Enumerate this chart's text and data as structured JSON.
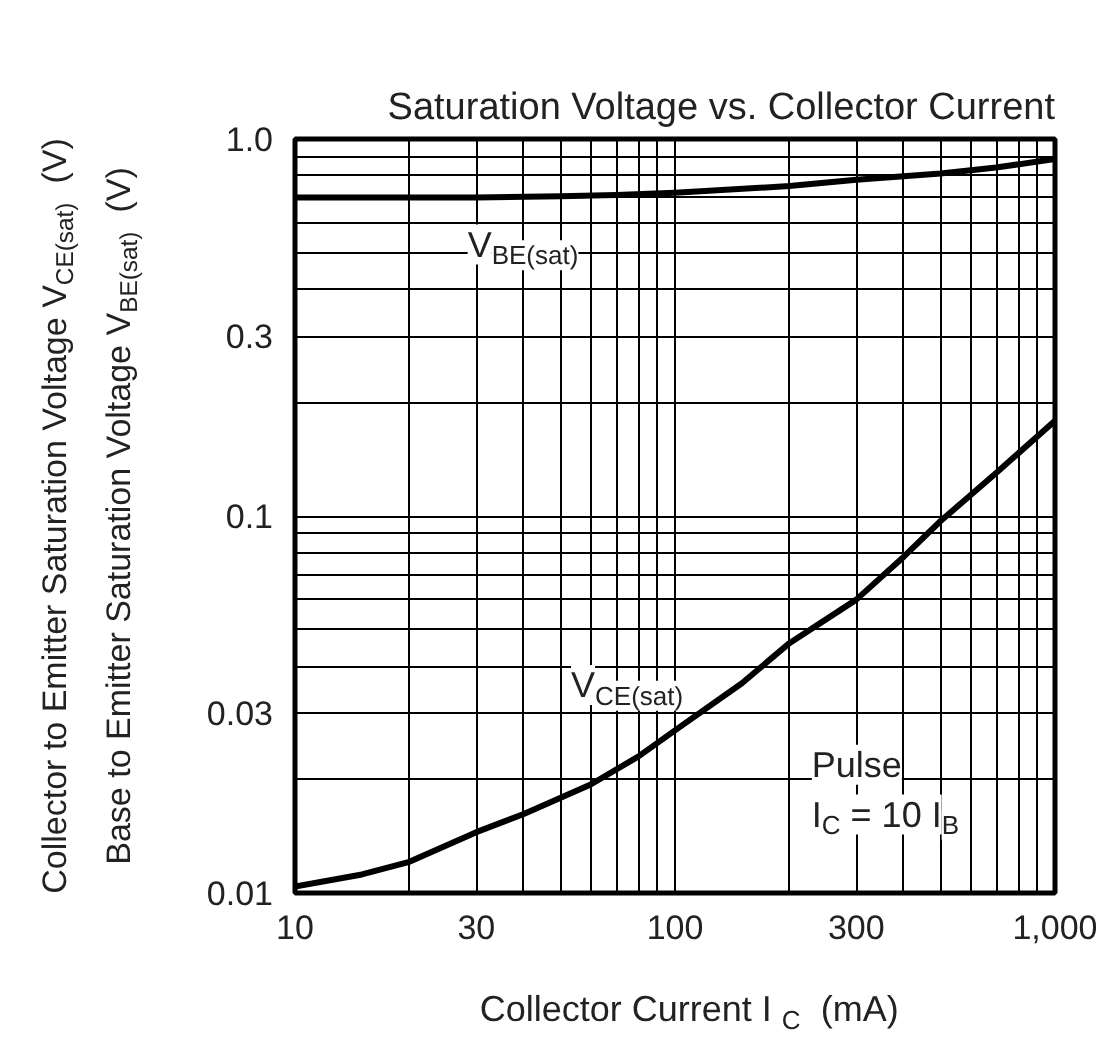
{
  "chart_data": {
    "type": "line",
    "title": "Saturation Voltage vs. Collector Current",
    "xlabel": "Collector Current  I$_{C}$  (mA)",
    "ylabel": [
      "Collector to Emitter Saturation Voltage V$_{CE(sat)}$  (V)",
      "Base to Emitter Saturation Voltage V$_{BE(sat)}$  (V)"
    ],
    "log": "xy",
    "grid": true,
    "marker": "none",
    "line_style": "solid",
    "xlim": [
      10,
      1000
    ],
    "ylim": [
      0.01,
      1.0
    ],
    "xticks": [
      10,
      {
        "value": 20,
        "label": null
      },
      30,
      {
        "value": 40,
        "label": null
      },
      {
        "value": 50,
        "label": null
      },
      {
        "value": 60,
        "label": null
      },
      {
        "value": 70,
        "label": null
      },
      {
        "value": 80,
        "label": null
      },
      {
        "value": 90,
        "label": null
      },
      100,
      {
        "value": 200,
        "label": null
      },
      300,
      {
        "value": 400,
        "label": null
      },
      {
        "value": 500,
        "label": null
      },
      {
        "value": 600,
        "label": null
      },
      {
        "value": 700,
        "label": null
      },
      {
        "value": 800,
        "label": null
      },
      {
        "value": 900,
        "label": null
      },
      {
        "value": 1000,
        "label": "1,000"
      }
    ],
    "yticks": [
      0.01,
      {
        "value": 0.02,
        "label": null
      },
      0.03,
      {
        "value": 0.04,
        "label": null
      },
      {
        "value": 0.05,
        "label": null
      },
      {
        "value": 0.06,
        "label": null
      },
      {
        "value": 0.07,
        "label": null
      },
      {
        "value": 0.08,
        "label": null
      },
      {
        "value": 0.09,
        "label": null
      },
      0.1,
      {
        "value": 0.2,
        "label": null
      },
      0.3,
      {
        "value": 0.4,
        "label": null
      },
      {
        "value": 0.5,
        "label": null
      },
      {
        "value": 0.6,
        "label": null
      },
      {
        "value": 0.7,
        "label": null
      },
      {
        "value": 0.8,
        "label": null
      },
      {
        "value": 0.9,
        "label": null
      },
      {
        "value": 1.0,
        "label": "1.0"
      }
    ],
    "series": [
      {
        "color": "#000000",
        "x": [
          10,
          20,
          30,
          50,
          70,
          100,
          200,
          300,
          500,
          700,
          1000
        ],
        "values": [
          0.7,
          0.7,
          0.7,
          0.705,
          0.71,
          0.72,
          0.75,
          0.78,
          0.81,
          0.84,
          0.885
        ]
      },
      {
        "color": "#000000",
        "x": [
          10,
          15,
          20,
          30,
          40,
          60,
          80,
          100,
          150,
          200,
          300,
          400,
          500,
          700,
          1000
        ],
        "values": [
          0.0104,
          0.0112,
          0.0121,
          0.0145,
          0.0162,
          0.0194,
          0.023,
          0.027,
          0.036,
          0.046,
          0.06,
          0.078,
          0.097,
          0.13,
          0.179
        ]
      }
    ],
    "annotations": [
      "V$_{BE(sat)}$",
      "V$_{CE(sat)}$",
      "Pulse\nI$_{C}$ = 10 I$_{B}$"
    ]
  }
}
